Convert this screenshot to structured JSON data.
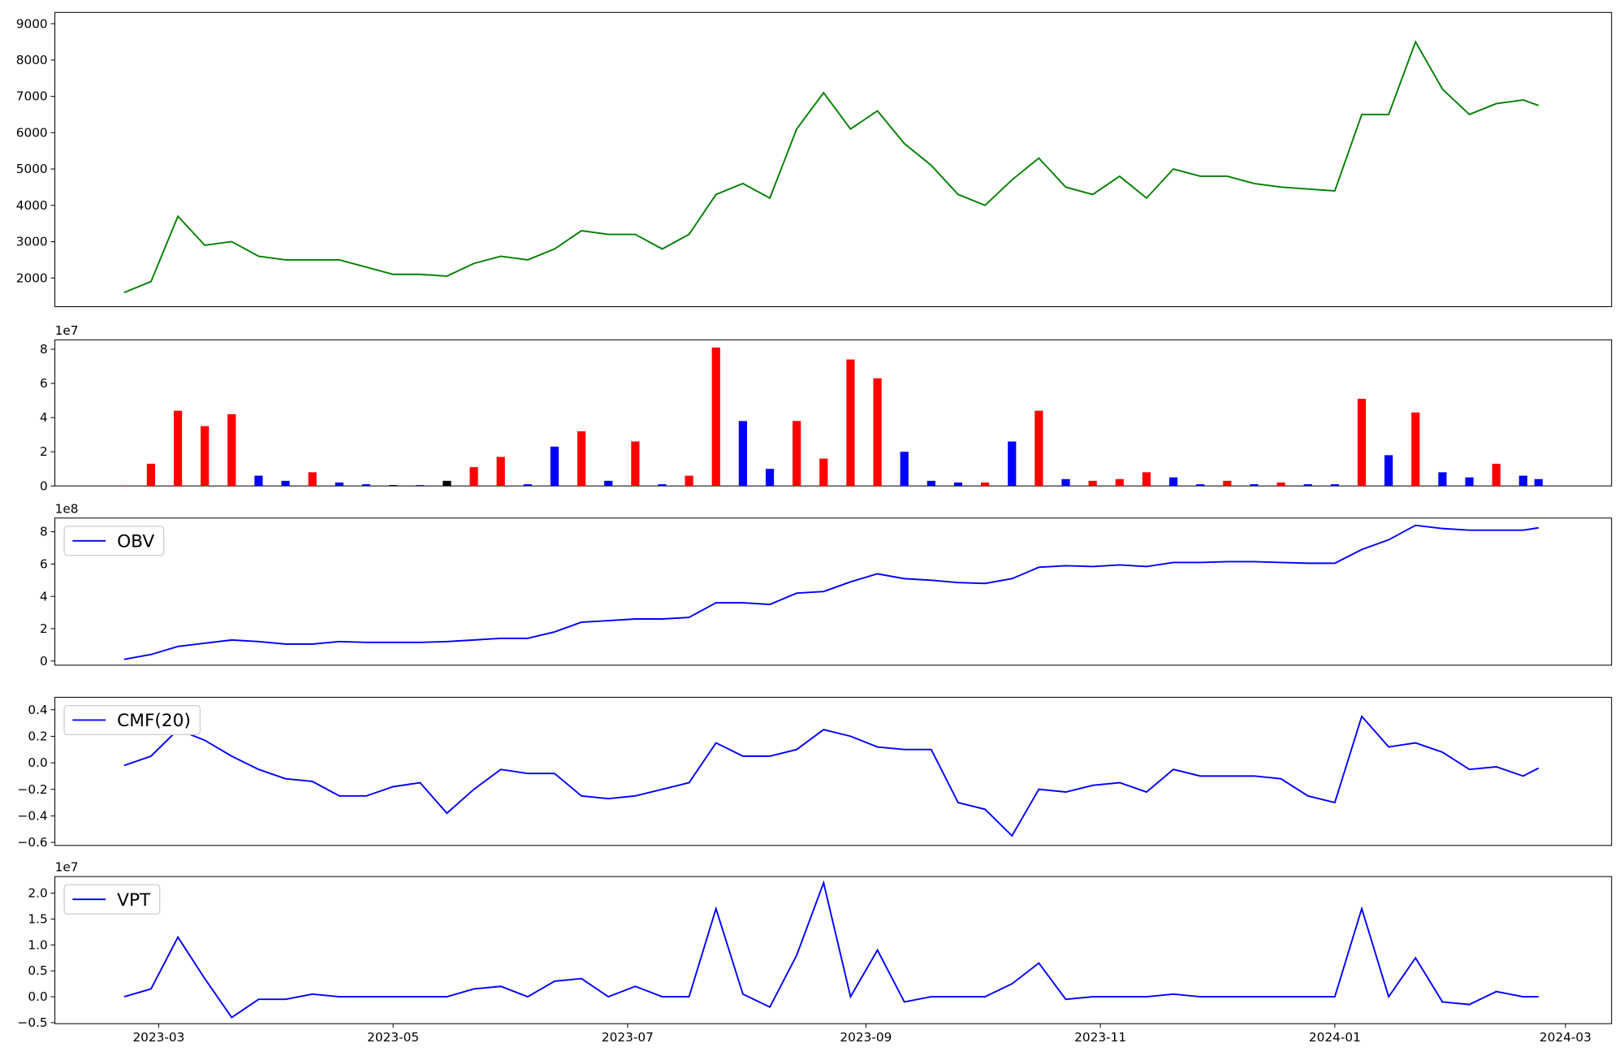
{
  "chart_data": [
    {
      "type": "line",
      "color": "#008000",
      "x": [
        "2023-02-20",
        "2023-02-27",
        "2023-03-06",
        "2023-03-13",
        "2023-03-20",
        "2023-03-27",
        "2023-04-03",
        "2023-04-10",
        "2023-04-17",
        "2023-04-24",
        "2023-05-01",
        "2023-05-08",
        "2023-05-15",
        "2023-05-22",
        "2023-05-29",
        "2023-06-05",
        "2023-06-12",
        "2023-06-19",
        "2023-06-26",
        "2023-07-03",
        "2023-07-10",
        "2023-07-17",
        "2023-07-24",
        "2023-07-31",
        "2023-08-07",
        "2023-08-14",
        "2023-08-21",
        "2023-08-28",
        "2023-09-04",
        "2023-09-11",
        "2023-09-18",
        "2023-09-25",
        "2023-10-02",
        "2023-10-09",
        "2023-10-16",
        "2023-10-23",
        "2023-10-30",
        "2023-11-06",
        "2023-11-13",
        "2023-11-20",
        "2023-11-27",
        "2023-12-04",
        "2023-12-11",
        "2023-12-18",
        "2023-12-25",
        "2024-01-01",
        "2024-01-08",
        "2024-01-15",
        "2024-01-22",
        "2024-01-29",
        "2024-02-05",
        "2024-02-12",
        "2024-02-19",
        "2024-02-23"
      ],
      "values": [
        1600,
        1900,
        3700,
        2900,
        3000,
        2600,
        2500,
        2500,
        2500,
        2300,
        2100,
        2100,
        2050,
        2400,
        2600,
        2500,
        2800,
        3300,
        3200,
        3200,
        2800,
        3200,
        4300,
        4600,
        4200,
        6100,
        7100,
        6100,
        6600,
        5700,
        5100,
        4300,
        4000,
        4700,
        5300,
        4500,
        4300,
        4800,
        4200,
        5000,
        4800,
        4800,
        4600,
        4500,
        4450,
        4400,
        6500,
        6500,
        8500,
        7200,
        6500,
        6800,
        6900,
        6750
      ],
      "ylim": [
        1210,
        9310
      ],
      "yticks": [
        2000,
        3000,
        4000,
        5000,
        6000,
        7000,
        8000,
        9000
      ]
    },
    {
      "type": "bar",
      "offset_label": "1e7",
      "values": [
        200000,
        13000000,
        44000000,
        35000000,
        42000000,
        6000000,
        3000000,
        8000000,
        2000000,
        1000000,
        500000,
        500000,
        3000000,
        11000000,
        17000000,
        1000000,
        23000000,
        32000000,
        3000000,
        26000000,
        1000000,
        6000000,
        81000000,
        38000000,
        10000000,
        38000000,
        16000000,
        74000000,
        63000000,
        20000000,
        3000000,
        2000000,
        2000000,
        26000000,
        44000000,
        4000000,
        3000000,
        4000000,
        8000000,
        5000000,
        1000000,
        3000000,
        1000000,
        2000000,
        1000000,
        1000000,
        51000000,
        18000000,
        43000000,
        8000000,
        5000000,
        13000000,
        6000000,
        4000000
      ],
      "colors": [
        "red",
        "red",
        "red",
        "red",
        "red",
        "blue",
        "blue",
        "red",
        "blue",
        "blue",
        "black",
        "blue",
        "black",
        "red",
        "red",
        "blue",
        "blue",
        "red",
        "blue",
        "red",
        "blue",
        "red",
        "red",
        "blue",
        "blue",
        "red",
        "red",
        "red",
        "red",
        "blue",
        "blue",
        "blue",
        "red",
        "blue",
        "red",
        "blue",
        "red",
        "red",
        "red",
        "blue",
        "blue",
        "red",
        "blue",
        "red",
        "blue",
        "blue",
        "red",
        "blue",
        "red",
        "blue",
        "blue",
        "red",
        "blue",
        "blue"
      ],
      "ylim": [
        0,
        85500000
      ],
      "yticks": [
        0,
        {
          "value": 20000000,
          "label": "2"
        },
        {
          "value": 40000000,
          "label": "4"
        },
        {
          "value": 60000000,
          "label": "6"
        },
        {
          "value": 80000000,
          "label": "8"
        }
      ]
    },
    {
      "type": "line",
      "offset_label": "1e8",
      "legend": "upper left",
      "series": [
        {
          "name": "OBV",
          "color": "#0000ff",
          "values": [
            10000000,
            40000000,
            90000000,
            110000000,
            130000000,
            120000000,
            105000000,
            105000000,
            120000000,
            115000000,
            115000000,
            115000000,
            120000000,
            130000000,
            140000000,
            140000000,
            180000000,
            240000000,
            250000000,
            260000000,
            260000000,
            270000000,
            360000000,
            360000000,
            350000000,
            420000000,
            430000000,
            490000000,
            540000000,
            510000000,
            500000000,
            485000000,
            480000000,
            510000000,
            580000000,
            590000000,
            585000000,
            595000000,
            585000000,
            610000000,
            610000000,
            615000000,
            615000000,
            610000000,
            605000000,
            605000000,
            690000000,
            750000000,
            840000000,
            820000000,
            810000000,
            810000000,
            810000000,
            825000000
          ]
        }
      ],
      "ylim": [
        -26000000,
        885000000
      ],
      "yticks": [
        0,
        {
          "value": 200000000,
          "label": "2"
        },
        {
          "value": 400000000,
          "label": "4"
        },
        {
          "value": 600000000,
          "label": "6"
        },
        {
          "value": 800000000,
          "label": "8"
        }
      ]
    },
    {
      "type": "line",
      "legend": "upper left",
      "series": [
        {
          "name": "CMF(20)",
          "color": "#0000ff",
          "values": [
            -0.02,
            0.05,
            0.25,
            0.17,
            0.05,
            -0.05,
            -0.12,
            -0.14,
            -0.25,
            -0.25,
            -0.18,
            -0.15,
            -0.38,
            -0.2,
            -0.05,
            -0.08,
            -0.08,
            -0.25,
            -0.27,
            -0.25,
            -0.2,
            -0.15,
            0.15,
            0.05,
            0.05,
            0.1,
            0.25,
            0.2,
            0.12,
            0.1,
            0.1,
            -0.3,
            -0.35,
            -0.55,
            -0.2,
            -0.22,
            -0.17,
            -0.15,
            -0.22,
            -0.05,
            -0.1,
            -0.1,
            -0.1,
            -0.12,
            -0.25,
            -0.3,
            0.35,
            0.12,
            0.15,
            0.08,
            -0.05,
            -0.03,
            -0.1,
            -0.04
          ]
        }
      ],
      "ylim": [
        -0.623,
        0.494
      ],
      "yticks": [
        {
          "value": -0.6,
          "label": "−0.6"
        },
        {
          "value": -0.4,
          "label": "−0.4"
        },
        {
          "value": -0.2,
          "label": "−0.2"
        },
        {
          "value": 0,
          "label": "0.0"
        },
        0.2,
        0.4
      ]
    },
    {
      "type": "line",
      "offset_label": "1e7",
      "legend": "upper left",
      "series": [
        {
          "name": "VPT",
          "color": "#0000ff",
          "values": [
            0,
            1500000,
            11500000,
            3500000,
            -4000000,
            -500000,
            -500000,
            500000,
            0,
            0,
            0,
            0,
            0,
            1500000,
            2000000,
            0,
            3000000,
            3500000,
            0,
            2000000,
            0,
            0,
            17000000,
            500000,
            -2000000,
            8000000,
            22000000,
            0,
            9000000,
            -1000000,
            0,
            0,
            0,
            2500000,
            6500000,
            -500000,
            0,
            0,
            0,
            500000,
            0,
            0,
            0,
            0,
            0,
            0,
            17000000,
            0,
            7500000,
            -1000000,
            -1500000,
            1000000,
            0,
            0
          ]
        }
      ],
      "ylim": [
        -5200000,
        23200000
      ],
      "yticks": [
        {
          "value": -5000000,
          "label": "−0.5"
        },
        {
          "value": 0,
          "label": "0.0"
        },
        {
          "value": 5000000,
          "label": "0.5"
        },
        {
          "value": 10000000,
          "label": "1.0"
        },
        {
          "value": 15000000,
          "label": "1.5"
        },
        {
          "value": 20000000,
          "label": "2.0"
        }
      ],
      "xlim": [
        "2023-02-02",
        "2024-03-13"
      ],
      "xticks": [
        {
          "value": "2023-03-01",
          "label": "2023-03"
        },
        {
          "value": "2023-05-01",
          "label": "2023-05"
        },
        {
          "value": "2023-07-01",
          "label": "2023-07"
        },
        {
          "value": "2023-09-01",
          "label": "2023-09"
        },
        {
          "value": "2023-11-01",
          "label": "2023-11"
        },
        {
          "value": "2024-01-01",
          "label": "2024-01"
        },
        {
          "value": "2024-03-01",
          "label": "2024-03"
        }
      ]
    }
  ]
}
